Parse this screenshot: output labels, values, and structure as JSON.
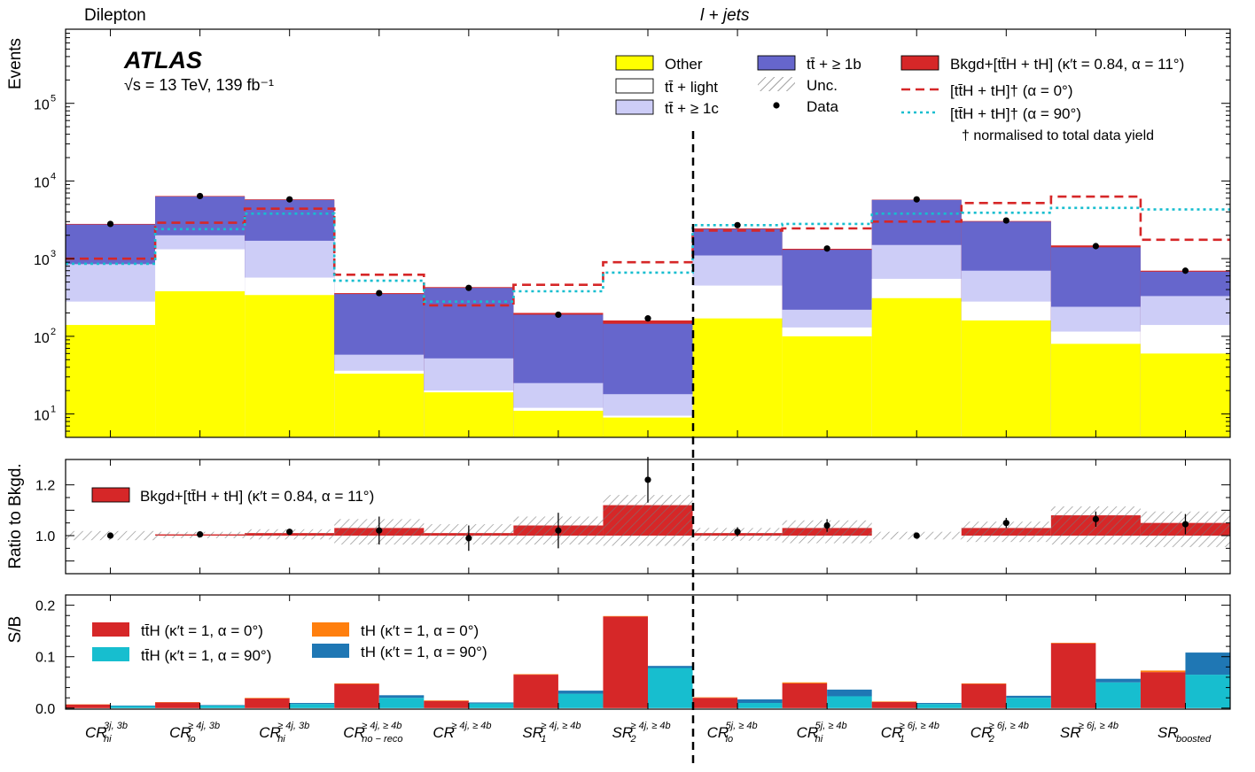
{
  "region_labels": {
    "dilepton": "Dilepton",
    "ljets": "l + jets"
  },
  "experiment": {
    "name": "ATLAS",
    "energy": "√s = 13 TeV, 139 fb⁻¹"
  },
  "dagger_note": "† normalised to total data yield",
  "colors": {
    "other": "#ffff00",
    "light": "#ffffff",
    "c": "#cdcdf7",
    "b": "#6666cc",
    "signal": "#d62728",
    "alpha0": "#d62728",
    "alpha90": "#17becf",
    "tH0": "#ff7f0e",
    "tH90": "#1f77b4",
    "ttH90": "#17becf"
  },
  "categories": [
    {
      "base": "CR",
      "sup": "3j, 3b",
      "sub": "hi"
    },
    {
      "base": "CR",
      "sup": "≥ 4j, 3b",
      "sub": "lo"
    },
    {
      "base": "CR",
      "sup": "≥ 4j, 3b",
      "sub": "hi"
    },
    {
      "base": "CR",
      "sup": "≥ 4j, ≥ 4b",
      "sub": "no − reco"
    },
    {
      "base": "CR",
      "sup": "≥ 4j, ≥ 4b",
      "sub": ""
    },
    {
      "base": "SR",
      "sup": "≥ 4j, ≥ 4b",
      "sub": "1"
    },
    {
      "base": "SR",
      "sup": "≥ 4j, ≥ 4b",
      "sub": "2"
    },
    {
      "base": "CR",
      "sup": "5j, ≥ 4b",
      "sub": "lo"
    },
    {
      "base": "CR",
      "sup": "5j, ≥ 4b",
      "sub": "hi"
    },
    {
      "base": "CR",
      "sup": "≥ 6j, ≥ 4b",
      "sub": "1"
    },
    {
      "base": "CR",
      "sup": "≥ 6j, ≥ 4b",
      "sub": "2"
    },
    {
      "base": "SR",
      "sup": "≥ 6j, ≥ 4b",
      "sub": ""
    },
    {
      "base": "SR",
      "sup": "",
      "sub": "boosted"
    }
  ],
  "chart_data": [
    {
      "type": "bar",
      "panel": "main",
      "ylabel": "Events",
      "yscale": "log",
      "ylim": [
        5,
        900000
      ],
      "yticks": [
        {
          "value": 10,
          "label": "10",
          "exp": "1"
        },
        {
          "value": 100,
          "label": "10",
          "exp": "2"
        },
        {
          "value": 1000,
          "label": "10",
          "exp": "3"
        },
        {
          "value": 10000,
          "label": "10",
          "exp": "4"
        },
        {
          "value": 100000,
          "label": "10",
          "exp": "5"
        }
      ],
      "stack_cumulative": {
        "other": [
          140,
          380,
          340,
          33,
          19,
          11,
          9,
          170,
          100,
          310,
          160,
          80,
          60
        ],
        "light": [
          280,
          1320,
          570,
          36,
          20,
          12,
          9.5,
          450,
          130,
          550,
          280,
          115,
          140
        ],
        "c": [
          850,
          2000,
          1700,
          58,
          52,
          25,
          18,
          1100,
          220,
          1500,
          700,
          240,
          330
        ],
        "b": [
          2750,
          6300,
          5700,
          350,
          420,
          190,
          145,
          2400,
          1300,
          5700,
          3000,
          1400,
          680
        ],
        "signal": [
          2800,
          6400,
          5800,
          360,
          430,
          200,
          160,
          2450,
          1340,
          5750,
          3050,
          1480,
          700
        ]
      },
      "data": [
        2800,
        6400,
        5800,
        360,
        420,
        190,
        170,
        2700,
        1350,
        5800,
        3100,
        1450,
        700
      ],
      "alpha0": [
        1000,
        2900,
        4400,
        620,
        250,
        460,
        900,
        2300,
        2450,
        3000,
        5200,
        6300,
        1750
      ],
      "alpha90": [
        860,
        2400,
        3800,
        520,
        280,
        380,
        660,
        2700,
        2800,
        3800,
        3900,
        4500,
        4300
      ],
      "legend": [
        {
          "key": "other",
          "label": "Other"
        },
        {
          "key": "light",
          "label": "tt̄ + light"
        },
        {
          "key": "c",
          "label": "tt̄ + ≥ 1c"
        },
        {
          "key": "b",
          "label": "tt̄ + ≥ 1b"
        },
        {
          "key": "unc",
          "label": "Unc."
        },
        {
          "key": "data",
          "label": "Data"
        },
        {
          "key": "signal",
          "label": "Bkgd+[tt̄H + tH] (κ′t = 0.84, α = 11°)"
        },
        {
          "key": "alpha0",
          "label": "[tt̄H + tH]† (α = 0°)"
        },
        {
          "key": "alpha90",
          "label": "[tt̄H + tH]† (α = 90°)"
        }
      ]
    },
    {
      "type": "bar",
      "panel": "ratio",
      "ylabel": "Ratio to Bkgd.",
      "ylim": [
        0.85,
        1.3
      ],
      "yticks": [
        1.0,
        1.1,
        1.2
      ],
      "yticklabels": [
        "1.0",
        "",
        "1.2"
      ],
      "signal": [
        1.0,
        1.005,
        1.01,
        1.03,
        1.01,
        1.04,
        1.12,
        1.01,
        1.03,
        1.0,
        1.03,
        1.08,
        1.05
      ],
      "unc": [
        0.018,
        0.01,
        0.015,
        0.035,
        0.035,
        0.035,
        0.04,
        0.02,
        0.03,
        0.015,
        0.025,
        0.035,
        0.045
      ],
      "data": [
        1.0,
        1.005,
        1.015,
        1.02,
        0.99,
        1.02,
        1.22,
        1.015,
        1.04,
        1.0,
        1.05,
        1.065,
        1.045
      ],
      "data_err": [
        0.012,
        0.008,
        0.012,
        0.055,
        0.05,
        0.07,
        0.09,
        0.018,
        0.025,
        0.01,
        0.02,
        0.03,
        0.04
      ],
      "legend": [
        {
          "key": "signal",
          "label": "Bkgd+[tt̄H + tH] (κ′t = 0.84, α = 11°)"
        }
      ]
    },
    {
      "type": "bar",
      "panel": "sb",
      "ylabel": "S/B",
      "ylim": [
        -0.002,
        0.22
      ],
      "yticks": [
        0.0,
        0.1,
        0.2
      ],
      "yticklabels": [
        "0.0",
        "0.1",
        "0.2"
      ],
      "ttH_alpha0": [
        0.007,
        0.011,
        0.019,
        0.047,
        0.014,
        0.065,
        0.178,
        0.02,
        0.048,
        0.012,
        0.047,
        0.126,
        0.07
      ],
      "tH_alpha0": [
        0.0005,
        0.0007,
        0.001,
        0.001,
        0.001,
        0.001,
        0.001,
        0.001,
        0.002,
        0.001,
        0.001,
        0.001,
        0.003
      ],
      "ttH_alpha90": [
        0.004,
        0.005,
        0.008,
        0.02,
        0.009,
        0.028,
        0.078,
        0.01,
        0.023,
        0.008,
        0.02,
        0.05,
        0.065
      ],
      "tH_alpha90": [
        0.001,
        0.001,
        0.002,
        0.005,
        0.002,
        0.006,
        0.004,
        0.007,
        0.013,
        0.002,
        0.004,
        0.007,
        0.043
      ],
      "legend": [
        {
          "key": "ttH_alpha0",
          "label": "tt̄H (κ′t = 1, α = 0°)"
        },
        {
          "key": "ttH_alpha90",
          "label": "tt̄H (κ′t = 1, α = 90°)"
        },
        {
          "key": "tH_alpha0",
          "label": "tH (κ′t = 1, α = 0°)"
        },
        {
          "key": "tH_alpha90",
          "label": "tH (κ′t = 1, α = 90°)"
        }
      ]
    }
  ]
}
